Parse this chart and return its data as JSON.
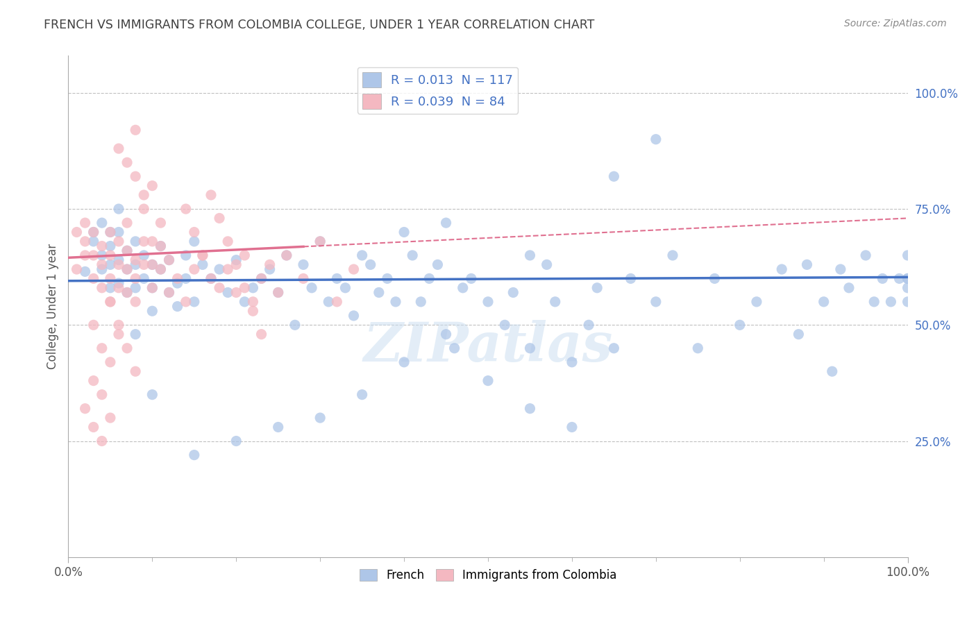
{
  "title": "FRENCH VS IMMIGRANTS FROM COLOMBIA COLLEGE, UNDER 1 YEAR CORRELATION CHART",
  "source": "Source: ZipAtlas.com",
  "ylabel": "College, Under 1 year",
  "xmin": 0.0,
  "xmax": 1.0,
  "ymin": 0.0,
  "ymax": 1.08,
  "x_tick_labels": [
    "0.0%",
    "100.0%"
  ],
  "y_tick_labels": [
    "25.0%",
    "50.0%",
    "75.0%",
    "100.0%"
  ],
  "y_tick_positions": [
    0.25,
    0.5,
    0.75,
    1.0
  ],
  "blue_R": 0.013,
  "blue_N": 117,
  "pink_R": 0.039,
  "pink_N": 84,
  "blue_color": "#aec6e8",
  "pink_color": "#f4b8c1",
  "blue_line_color": "#4472c4",
  "pink_line_color": "#e07090",
  "watermark": "ZIPatlas",
  "background_color": "#ffffff",
  "grid_color": "#c0c0c0",
  "title_color": "#404040",
  "blue_line_y_intercept": 0.595,
  "blue_line_slope": 0.008,
  "pink_line_y_intercept": 0.645,
  "pink_line_slope": 0.085,
  "pink_line_solid_end": 0.28,
  "blue_scatter_x": [
    0.02,
    0.03,
    0.03,
    0.04,
    0.04,
    0.05,
    0.05,
    0.05,
    0.06,
    0.06,
    0.06,
    0.07,
    0.07,
    0.07,
    0.08,
    0.08,
    0.08,
    0.09,
    0.09,
    0.1,
    0.1,
    0.1,
    0.11,
    0.11,
    0.12,
    0.12,
    0.13,
    0.13,
    0.14,
    0.14,
    0.15,
    0.15,
    0.16,
    0.17,
    0.18,
    0.19,
    0.2,
    0.21,
    0.22,
    0.23,
    0.24,
    0.25,
    0.26,
    0.27,
    0.28,
    0.29,
    0.3,
    0.31,
    0.32,
    0.33,
    0.34,
    0.35,
    0.36,
    0.37,
    0.38,
    0.39,
    0.4,
    0.41,
    0.42,
    0.43,
    0.44,
    0.45,
    0.46,
    0.47,
    0.48,
    0.5,
    0.52,
    0.53,
    0.55,
    0.55,
    0.57,
    0.58,
    0.6,
    0.62,
    0.63,
    0.65,
    0.67,
    0.7,
    0.72,
    0.75,
    0.77,
    0.8,
    0.82,
    0.85,
    0.87,
    0.88,
    0.9,
    0.91,
    0.92,
    0.93,
    0.95,
    0.96,
    0.97,
    0.98,
    0.99,
    1.0,
    1.0,
    1.0,
    1.0,
    1.0,
    0.5,
    0.55,
    0.6,
    0.65,
    0.7,
    0.35,
    0.4,
    0.45,
    0.3,
    0.25,
    0.2,
    0.15,
    0.1,
    0.08,
    0.06,
    0.05,
    0.04
  ],
  "blue_scatter_y": [
    0.615,
    0.7,
    0.68,
    0.65,
    0.72,
    0.63,
    0.58,
    0.67,
    0.64,
    0.7,
    0.59,
    0.66,
    0.62,
    0.57,
    0.68,
    0.63,
    0.58,
    0.65,
    0.6,
    0.63,
    0.58,
    0.53,
    0.67,
    0.62,
    0.57,
    0.64,
    0.59,
    0.54,
    0.65,
    0.6,
    0.55,
    0.68,
    0.63,
    0.6,
    0.62,
    0.57,
    0.64,
    0.55,
    0.58,
    0.6,
    0.62,
    0.57,
    0.65,
    0.5,
    0.63,
    0.58,
    0.68,
    0.55,
    0.6,
    0.58,
    0.52,
    0.65,
    0.63,
    0.57,
    0.6,
    0.55,
    0.7,
    0.65,
    0.55,
    0.6,
    0.63,
    0.72,
    0.45,
    0.58,
    0.6,
    0.55,
    0.5,
    0.57,
    0.65,
    0.45,
    0.63,
    0.55,
    0.42,
    0.5,
    0.58,
    0.45,
    0.6,
    0.55,
    0.65,
    0.45,
    0.6,
    0.5,
    0.55,
    0.62,
    0.48,
    0.63,
    0.55,
    0.4,
    0.62,
    0.58,
    0.65,
    0.55,
    0.6,
    0.55,
    0.6,
    0.58,
    0.65,
    0.6,
    0.55,
    0.6,
    0.38,
    0.32,
    0.28,
    0.82,
    0.9,
    0.35,
    0.42,
    0.48,
    0.3,
    0.28,
    0.25,
    0.22,
    0.35,
    0.48,
    0.75,
    0.7,
    0.62
  ],
  "pink_scatter_x": [
    0.01,
    0.01,
    0.02,
    0.02,
    0.02,
    0.03,
    0.03,
    0.03,
    0.04,
    0.04,
    0.04,
    0.05,
    0.05,
    0.05,
    0.05,
    0.06,
    0.06,
    0.06,
    0.07,
    0.07,
    0.07,
    0.08,
    0.08,
    0.08,
    0.09,
    0.09,
    0.1,
    0.1,
    0.11,
    0.11,
    0.12,
    0.12,
    0.13,
    0.14,
    0.15,
    0.16,
    0.17,
    0.18,
    0.19,
    0.2,
    0.21,
    0.22,
    0.23,
    0.24,
    0.25,
    0.26,
    0.28,
    0.3,
    0.32,
    0.34,
    0.14,
    0.15,
    0.16,
    0.17,
    0.18,
    0.19,
    0.2,
    0.21,
    0.22,
    0.23,
    0.07,
    0.08,
    0.09,
    0.1,
    0.06,
    0.07,
    0.08,
    0.09,
    0.1,
    0.11,
    0.05,
    0.06,
    0.07,
    0.08,
    0.03,
    0.04,
    0.05,
    0.06,
    0.03,
    0.04,
    0.02,
    0.03,
    0.04,
    0.05
  ],
  "pink_scatter_y": [
    0.62,
    0.7,
    0.68,
    0.65,
    0.72,
    0.65,
    0.7,
    0.6,
    0.63,
    0.58,
    0.67,
    0.65,
    0.7,
    0.6,
    0.55,
    0.68,
    0.63,
    0.58,
    0.66,
    0.62,
    0.57,
    0.64,
    0.6,
    0.55,
    0.63,
    0.68,
    0.63,
    0.58,
    0.67,
    0.62,
    0.57,
    0.64,
    0.6,
    0.55,
    0.62,
    0.65,
    0.6,
    0.58,
    0.62,
    0.57,
    0.65,
    0.55,
    0.6,
    0.63,
    0.57,
    0.65,
    0.6,
    0.68,
    0.55,
    0.62,
    0.75,
    0.7,
    0.65,
    0.78,
    0.73,
    0.68,
    0.63,
    0.58,
    0.53,
    0.48,
    0.72,
    0.82,
    0.75,
    0.68,
    0.88,
    0.85,
    0.92,
    0.78,
    0.8,
    0.72,
    0.55,
    0.5,
    0.45,
    0.4,
    0.5,
    0.45,
    0.42,
    0.48,
    0.38,
    0.35,
    0.32,
    0.28,
    0.25,
    0.3
  ]
}
